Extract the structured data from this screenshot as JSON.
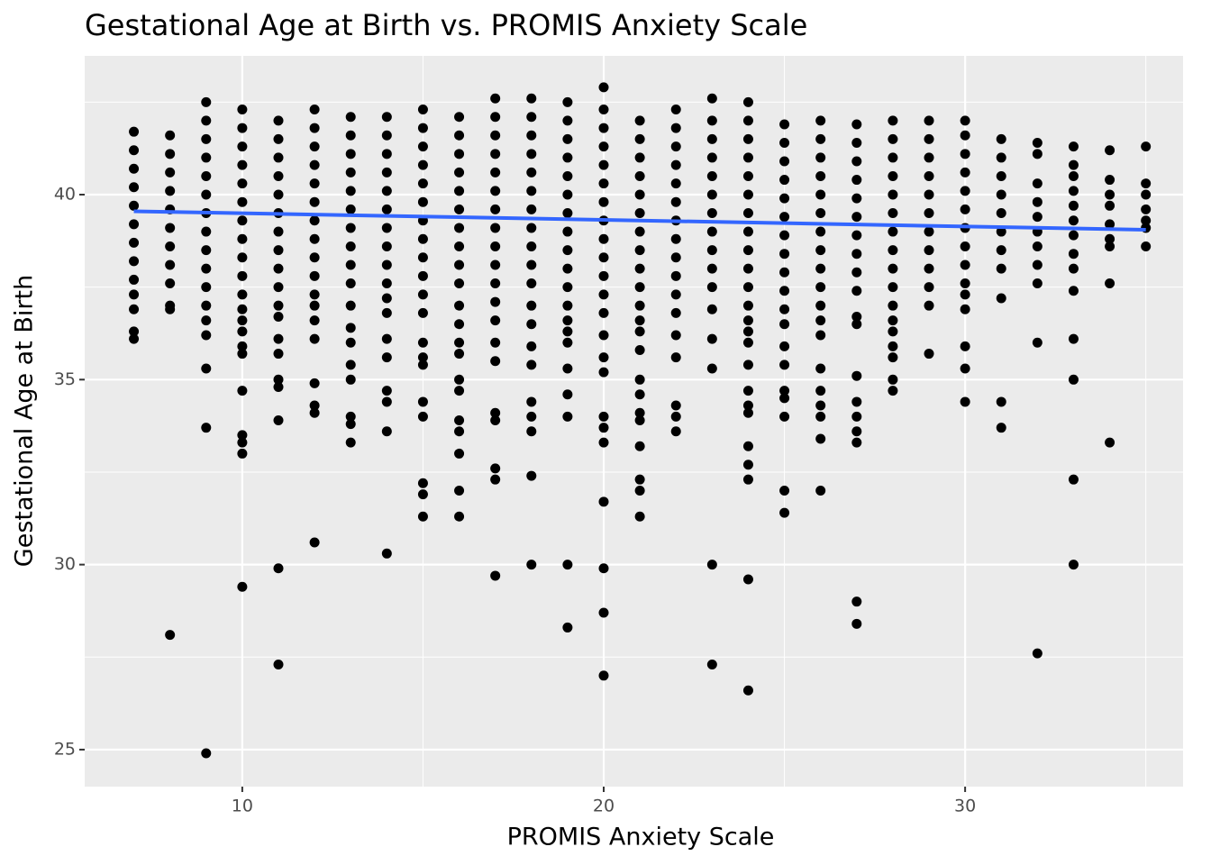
{
  "chart_data": {
    "type": "scatter",
    "title": "Gestational Age at Birth vs. PROMIS Anxiety Scale",
    "x_label": "PROMIS Anxiety Scale",
    "y_label": "Gestational Age at Birth",
    "xlim": [
      5.64,
      36.03
    ],
    "ylim": [
      24.0,
      43.75
    ],
    "xticks": [
      10,
      20,
      30
    ],
    "yticks": [
      25,
      30,
      35,
      40
    ],
    "grid": true,
    "color": "#000000",
    "points": [
      {
        "x": 7,
        "y": [
          41.7,
          41.2,
          40.7,
          40.2,
          39.7,
          39.2,
          38.7,
          38.2,
          37.7,
          37.3,
          36.9,
          36.3,
          36.1
        ]
      },
      {
        "x": 8,
        "y": [
          41.6,
          41.1,
          40.6,
          40.1,
          39.6,
          39.1,
          38.6,
          38.1,
          37.6,
          37.0,
          36.9,
          28.1
        ]
      },
      {
        "x": 9,
        "y": [
          42.5,
          42.0,
          41.5,
          41.0,
          40.5,
          40.0,
          39.5,
          39.0,
          38.5,
          38.0,
          37.5,
          37.0,
          36.6,
          36.2,
          35.3,
          33.7,
          24.9
        ]
      },
      {
        "x": 10,
        "y": [
          42.3,
          41.8,
          41.3,
          40.8,
          40.3,
          39.8,
          39.3,
          38.8,
          38.3,
          37.8,
          37.3,
          36.9,
          36.6,
          36.3,
          35.9,
          35.7,
          34.7,
          33.5,
          33.3,
          33.0,
          29.4
        ]
      },
      {
        "x": 11,
        "y": [
          42.0,
          41.5,
          41.0,
          40.5,
          40.0,
          39.5,
          39.0,
          38.5,
          38.0,
          37.5,
          37.0,
          36.7,
          36.1,
          35.7,
          35.0,
          34.8,
          33.9,
          29.9,
          27.3
        ]
      },
      {
        "x": 12,
        "y": [
          42.3,
          41.8,
          41.3,
          40.8,
          40.3,
          39.8,
          39.3,
          38.8,
          38.3,
          37.8,
          37.3,
          37.0,
          36.6,
          36.1,
          34.9,
          34.3,
          34.1,
          30.6
        ]
      },
      {
        "x": 13,
        "y": [
          42.1,
          41.6,
          41.1,
          40.6,
          40.1,
          39.6,
          39.1,
          38.6,
          38.1,
          37.6,
          37.0,
          36.4,
          36.0,
          35.4,
          35.0,
          34.0,
          33.8,
          33.3
        ]
      },
      {
        "x": 14,
        "y": [
          42.1,
          41.6,
          41.1,
          40.6,
          40.1,
          39.6,
          39.1,
          38.6,
          38.1,
          37.6,
          37.2,
          36.8,
          36.1,
          35.6,
          34.7,
          34.4,
          33.6,
          30.3
        ]
      },
      {
        "x": 15,
        "y": [
          42.3,
          41.8,
          41.3,
          40.8,
          40.3,
          39.8,
          39.3,
          38.8,
          38.3,
          37.8,
          37.3,
          36.8,
          36.0,
          35.6,
          35.4,
          34.4,
          34.0,
          32.2,
          31.9,
          31.3
        ]
      },
      {
        "x": 16,
        "y": [
          42.1,
          41.6,
          41.1,
          40.6,
          40.1,
          39.6,
          39.1,
          38.6,
          38.1,
          37.6,
          37.0,
          36.5,
          36.0,
          35.7,
          35.0,
          34.7,
          33.9,
          33.6,
          33.0,
          32.0,
          31.3
        ]
      },
      {
        "x": 17,
        "y": [
          42.6,
          42.1,
          41.6,
          41.1,
          40.6,
          40.1,
          39.6,
          39.1,
          38.6,
          38.1,
          37.6,
          37.1,
          36.6,
          36.0,
          35.5,
          34.1,
          33.9,
          32.6,
          32.3,
          29.7
        ]
      },
      {
        "x": 18,
        "y": [
          42.6,
          42.1,
          41.6,
          41.1,
          40.6,
          40.1,
          39.6,
          39.1,
          38.6,
          38.1,
          37.6,
          37.0,
          36.5,
          35.9,
          35.4,
          34.4,
          34.0,
          33.6,
          32.4,
          30.0
        ]
      },
      {
        "x": 19,
        "y": [
          42.5,
          42.0,
          41.5,
          41.0,
          40.5,
          40.0,
          39.5,
          39.0,
          38.5,
          38.0,
          37.5,
          37.0,
          36.6,
          36.3,
          36.0,
          35.3,
          34.6,
          34.0,
          30.0,
          28.3
        ]
      },
      {
        "x": 20,
        "y": [
          42.9,
          42.3,
          41.8,
          41.3,
          40.8,
          40.3,
          39.8,
          39.3,
          38.8,
          38.3,
          37.8,
          37.3,
          36.8,
          36.2,
          35.6,
          35.2,
          34.0,
          33.7,
          33.3,
          31.7,
          29.9,
          28.7,
          27.0
        ]
      },
      {
        "x": 21,
        "y": [
          42.0,
          41.5,
          41.0,
          40.5,
          40.0,
          39.5,
          39.0,
          38.5,
          38.0,
          37.5,
          37.0,
          36.6,
          36.3,
          35.8,
          35.0,
          34.6,
          34.1,
          33.9,
          33.2,
          32.3,
          32.0,
          31.3
        ]
      },
      {
        "x": 22,
        "y": [
          42.3,
          41.8,
          41.3,
          40.8,
          40.3,
          39.8,
          39.3,
          38.8,
          38.3,
          37.8,
          37.3,
          36.8,
          36.2,
          35.6,
          34.3,
          34.0,
          33.6
        ]
      },
      {
        "x": 23,
        "y": [
          42.6,
          42.0,
          41.5,
          41.0,
          40.5,
          40.0,
          39.5,
          39.0,
          38.5,
          38.0,
          37.5,
          36.9,
          36.1,
          35.3,
          30.0,
          27.3
        ]
      },
      {
        "x": 24,
        "y": [
          42.5,
          42.0,
          41.5,
          41.0,
          40.5,
          40.0,
          39.5,
          39.0,
          38.5,
          38.0,
          37.5,
          37.0,
          36.6,
          36.3,
          36.0,
          35.4,
          34.7,
          34.3,
          34.1,
          33.2,
          32.7,
          32.3,
          29.6,
          26.6
        ]
      },
      {
        "x": 25,
        "y": [
          41.9,
          41.4,
          40.9,
          40.4,
          39.9,
          39.4,
          38.9,
          38.4,
          37.9,
          37.4,
          36.9,
          36.5,
          35.9,
          35.4,
          34.7,
          34.5,
          34.0,
          32.0,
          31.4
        ]
      },
      {
        "x": 26,
        "y": [
          42.0,
          41.5,
          41.0,
          40.5,
          40.0,
          39.5,
          39.0,
          38.5,
          38.0,
          37.5,
          37.0,
          36.6,
          36.2,
          35.3,
          34.7,
          34.3,
          34.0,
          33.4,
          32.0
        ]
      },
      {
        "x": 27,
        "y": [
          41.9,
          41.4,
          40.9,
          40.4,
          39.9,
          39.4,
          38.9,
          38.4,
          37.9,
          37.4,
          36.7,
          36.5,
          35.1,
          34.4,
          34.0,
          33.6,
          33.3,
          29.0,
          28.4
        ]
      },
      {
        "x": 28,
        "y": [
          42.0,
          41.5,
          41.0,
          40.5,
          40.0,
          39.5,
          39.0,
          38.5,
          38.0,
          37.5,
          37.0,
          36.6,
          36.3,
          35.9,
          35.6,
          35.0,
          34.7
        ]
      },
      {
        "x": 29,
        "y": [
          42.0,
          41.5,
          41.0,
          40.5,
          40.0,
          39.5,
          39.0,
          38.5,
          38.0,
          37.5,
          37.0,
          35.7
        ]
      },
      {
        "x": 30,
        "y": [
          42.0,
          41.6,
          41.1,
          40.6,
          40.1,
          39.6,
          39.1,
          38.6,
          38.1,
          37.6,
          37.3,
          36.9,
          35.9,
          35.3,
          34.4
        ]
      },
      {
        "x": 31,
        "y": [
          41.5,
          41.0,
          40.5,
          40.0,
          39.5,
          39.0,
          38.5,
          38.0,
          37.2,
          34.4,
          33.7
        ]
      },
      {
        "x": 32,
        "y": [
          41.4,
          41.1,
          40.3,
          39.8,
          39.4,
          39.0,
          38.6,
          38.1,
          37.6,
          36.0,
          27.6
        ]
      },
      {
        "x": 33,
        "y": [
          41.3,
          40.8,
          40.5,
          40.1,
          39.7,
          39.3,
          38.9,
          38.4,
          38.0,
          37.4,
          36.1,
          35.0,
          32.3,
          30.0
        ]
      },
      {
        "x": 34,
        "y": [
          41.2,
          40.4,
          40.0,
          39.7,
          39.2,
          38.8,
          38.6,
          37.6,
          33.3
        ]
      },
      {
        "x": 35,
        "y": [
          41.3,
          40.3,
          40.0,
          39.6,
          39.3,
          39.1,
          38.6
        ]
      }
    ],
    "trend": {
      "x": [
        7,
        35
      ],
      "y": [
        39.55,
        39.05
      ],
      "color": "#3366ff"
    }
  }
}
